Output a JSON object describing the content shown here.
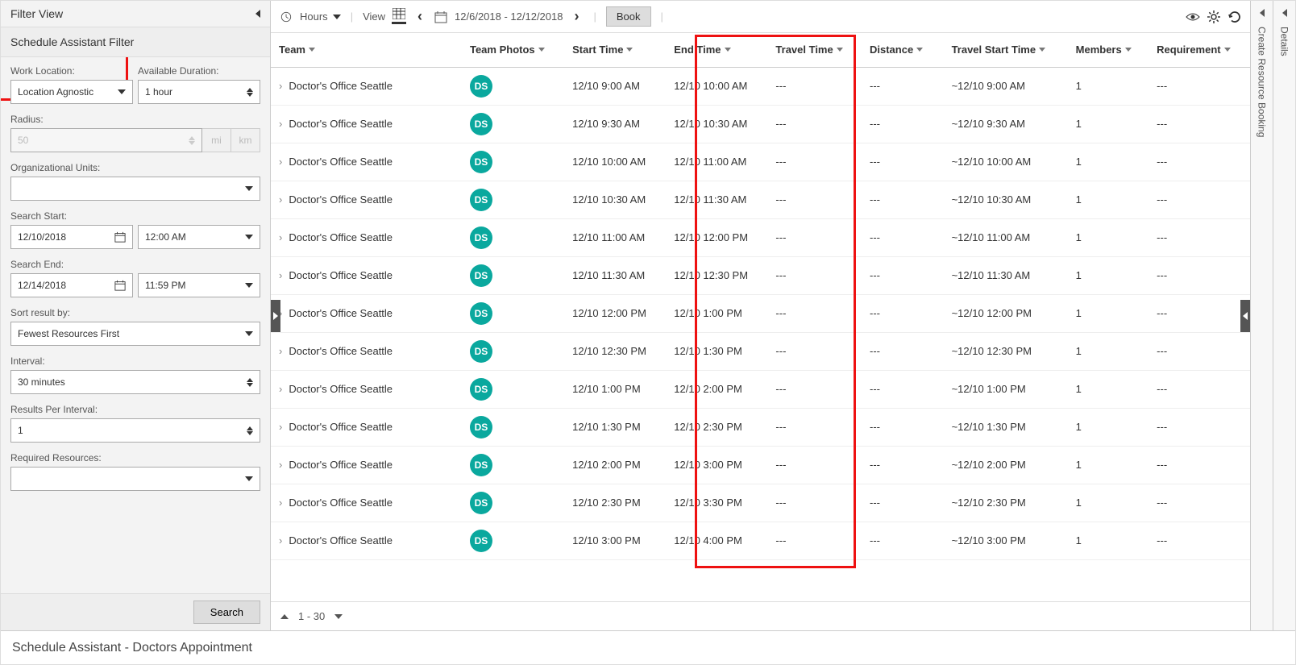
{
  "colors": {
    "accent": "#0aa89e",
    "highlight": "#e11"
  },
  "filterPanel": {
    "title": "Filter View",
    "subtitle": "Schedule Assistant Filter",
    "workLocation": {
      "label": "Work Location:",
      "value": "Location Agnostic"
    },
    "availableDuration": {
      "label": "Available Duration:",
      "value": "1 hour"
    },
    "radius": {
      "label": "Radius:",
      "value": "50",
      "unit_mi": "mi",
      "unit_km": "km"
    },
    "orgUnits": {
      "label": "Organizational Units:",
      "value": ""
    },
    "searchStart": {
      "label": "Search Start:",
      "date": "12/10/2018",
      "time": "12:00 AM"
    },
    "searchEnd": {
      "label": "Search End:",
      "date": "12/14/2018",
      "time": "11:59 PM"
    },
    "sortBy": {
      "label": "Sort result by:",
      "value": "Fewest Resources First"
    },
    "interval": {
      "label": "Interval:",
      "value": "30 minutes"
    },
    "resultsPerInterval": {
      "label": "Results Per Interval:",
      "value": "1"
    },
    "requiredResources": {
      "label": "Required Resources:",
      "value": ""
    },
    "searchBtn": "Search"
  },
  "toolbar": {
    "hoursLabel": "Hours",
    "viewLabel": "View",
    "dateRange": "12/6/2018 - 12/12/2018",
    "bookBtn": "Book"
  },
  "grid": {
    "columns": [
      "Team",
      "Team Photos",
      "Start Time",
      "End Time",
      "Travel Time",
      "Distance",
      "Travel Start Time",
      "Members",
      "Requirement"
    ],
    "teamName": "Doctor's Office Seattle",
    "avatarInitials": "DS",
    "rows": [
      {
        "start": "12/10 9:00 AM",
        "end": "12/10 10:00 AM",
        "travel": "---",
        "dist": "---",
        "tstart": "~12/10 9:00 AM",
        "members": "1",
        "req": "---"
      },
      {
        "start": "12/10 9:30 AM",
        "end": "12/10 10:30 AM",
        "travel": "---",
        "dist": "---",
        "tstart": "~12/10 9:30 AM",
        "members": "1",
        "req": "---"
      },
      {
        "start": "12/10 10:00 AM",
        "end": "12/10 11:00 AM",
        "travel": "---",
        "dist": "---",
        "tstart": "~12/10 10:00 AM",
        "members": "1",
        "req": "---"
      },
      {
        "start": "12/10 10:30 AM",
        "end": "12/10 11:30 AM",
        "travel": "---",
        "dist": "---",
        "tstart": "~12/10 10:30 AM",
        "members": "1",
        "req": "---"
      },
      {
        "start": "12/10 11:00 AM",
        "end": "12/10 12:00 PM",
        "travel": "---",
        "dist": "---",
        "tstart": "~12/10 11:00 AM",
        "members": "1",
        "req": "---"
      },
      {
        "start": "12/10 11:30 AM",
        "end": "12/10 12:30 PM",
        "travel": "---",
        "dist": "---",
        "tstart": "~12/10 11:30 AM",
        "members": "1",
        "req": "---"
      },
      {
        "start": "12/10 12:00 PM",
        "end": "12/10 1:00 PM",
        "travel": "---",
        "dist": "---",
        "tstart": "~12/10 12:00 PM",
        "members": "1",
        "req": "---"
      },
      {
        "start": "12/10 12:30 PM",
        "end": "12/10 1:30 PM",
        "travel": "---",
        "dist": "---",
        "tstart": "~12/10 12:30 PM",
        "members": "1",
        "req": "---"
      },
      {
        "start": "12/10 1:00 PM",
        "end": "12/10 2:00 PM",
        "travel": "---",
        "dist": "---",
        "tstart": "~12/10 1:00 PM",
        "members": "1",
        "req": "---"
      },
      {
        "start": "12/10 1:30 PM",
        "end": "12/10 2:30 PM",
        "travel": "---",
        "dist": "---",
        "tstart": "~12/10 1:30 PM",
        "members": "1",
        "req": "---"
      },
      {
        "start": "12/10 2:00 PM",
        "end": "12/10 3:00 PM",
        "travel": "---",
        "dist": "---",
        "tstart": "~12/10 2:00 PM",
        "members": "1",
        "req": "---"
      },
      {
        "start": "12/10 2:30 PM",
        "end": "12/10 3:30 PM",
        "travel": "---",
        "dist": "---",
        "tstart": "~12/10 2:30 PM",
        "members": "1",
        "req": "---"
      },
      {
        "start": "12/10 3:00 PM",
        "end": "12/10 4:00 PM",
        "travel": "---",
        "dist": "---",
        "tstart": "~12/10 3:00 PM",
        "members": "1",
        "req": "---"
      }
    ],
    "pager": "1 - 30"
  },
  "rails": {
    "create": "Create Resource Booking",
    "details": "Details"
  },
  "footer": "Schedule Assistant - Doctors Appointment"
}
